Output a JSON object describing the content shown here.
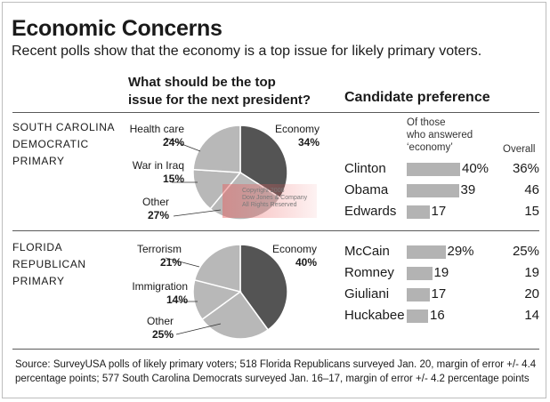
{
  "header": {
    "title": "Economic Concerns",
    "subtitle": "Recent polls show that the economy is a top issue for likely primary voters."
  },
  "pie_heading": [
    "What should be the top",
    "issue for the next president?"
  ],
  "candidate_heading": "Candidate preference",
  "column_heads": {
    "economy_lines": [
      "Of those",
      "who answered",
      "‘economy’"
    ],
    "overall": "Overall"
  },
  "colors": {
    "dark_slice": "#545454",
    "light_slice": "#b8b8b8",
    "bar": "#b3b3b3",
    "rule": "#5a5a5a"
  },
  "watermark": [
    "Copyright 2008",
    "Dow Jones & Company",
    "All Rights Reserved"
  ],
  "chart_data": [
    {
      "type": "pie",
      "primary_label": [
        "SOUTH CAROLINA",
        "DEMOCRATIC",
        "PRIMARY"
      ],
      "slices": [
        {
          "label": "Economy",
          "value": 34,
          "pct_text": "34%",
          "color": "#545454"
        },
        {
          "label": "Other",
          "value": 27,
          "pct_text": "27%",
          "color": "#b8b8b8"
        },
        {
          "label": "War in Iraq",
          "value": 15,
          "pct_text": "15%",
          "color": "#b8b8b8"
        },
        {
          "label": "Health care",
          "value": 24,
          "pct_text": "24%",
          "color": "#b8b8b8"
        }
      ]
    },
    {
      "type": "bar",
      "candidates": [
        "Clinton",
        "Obama",
        "Edwards"
      ],
      "economy_values": [
        40,
        39,
        17
      ],
      "economy_labels": [
        "40%",
        "39",
        "17"
      ],
      "overall": [
        36,
        46,
        15
      ],
      "overall_labels": [
        "36%",
        "46",
        "15"
      ]
    },
    {
      "type": "pie",
      "primary_label": [
        "FLORIDA",
        "REPUBLICAN",
        "PRIMARY"
      ],
      "slices": [
        {
          "label": "Economy",
          "value": 40,
          "pct_text": "40%",
          "color": "#545454"
        },
        {
          "label": "Other",
          "value": 25,
          "pct_text": "25%",
          "color": "#b8b8b8"
        },
        {
          "label": "Immigration",
          "value": 14,
          "pct_text": "14%",
          "color": "#b8b8b8"
        },
        {
          "label": "Terrorism",
          "value": 21,
          "pct_text": "21%",
          "color": "#b8b8b8"
        }
      ]
    },
    {
      "type": "bar",
      "candidates": [
        "McCain",
        "Romney",
        "Giuliani",
        "Huckabee"
      ],
      "economy_values": [
        29,
        19,
        17,
        16
      ],
      "economy_labels": [
        "29%",
        "19",
        "17",
        "16"
      ],
      "overall": [
        25,
        19,
        20,
        14
      ],
      "overall_labels": [
        "25%",
        "19",
        "20",
        "14"
      ]
    }
  ],
  "source": "Source: SurveyUSA polls of likely primary voters; 518 Florida Republicans surveyed Jan. 20, margin of error +/- 4.4 percentage points; 577 South Carolina Democrats surveyed Jan. 16–17, margin of error +/- 4.2 percentage points"
}
